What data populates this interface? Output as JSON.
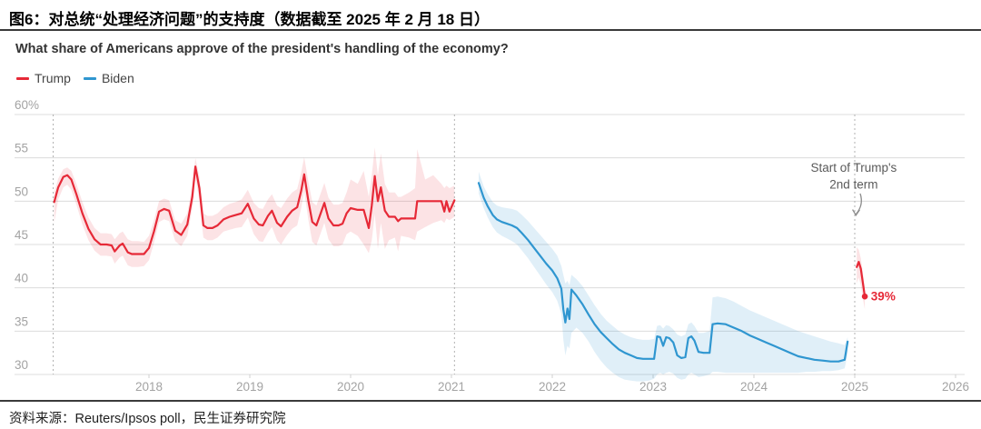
{
  "figure": {
    "title": "图6：对总统“处理经济问题”的支持度（数据截至 2025 年 2 月 18 日）",
    "source": "资料来源：Reuters/Ipsos poll，民生证券研究院"
  },
  "chart_data": {
    "type": "line",
    "title": "What share of Americans approve of the president's handling of the economy?",
    "xlabel": "",
    "ylabel": "",
    "ylim": [
      30,
      60
    ],
    "xlim": [
      2016.95,
      2026.2
    ],
    "grid": true,
    "legend_position": "top-left",
    "y_ticks": [
      {
        "value": 60,
        "label": "60%"
      },
      {
        "value": 55,
        "label": "55"
      },
      {
        "value": 50,
        "label": "50"
      },
      {
        "value": 45,
        "label": "45"
      },
      {
        "value": 40,
        "label": "40"
      },
      {
        "value": 35,
        "label": "35"
      },
      {
        "value": 30,
        "label": "30"
      }
    ],
    "x_ticks": [
      2018,
      2019,
      2020,
      2021,
      2022,
      2023,
      2024,
      2025,
      2026
    ],
    "legend": [
      {
        "label": "Trump",
        "color": "#e62937"
      },
      {
        "label": "Biden",
        "color": "#2f96d0"
      }
    ],
    "event_lines": [
      2017.05,
      2021.03,
      2025.0
    ],
    "annotation": {
      "lines": [
        "Start of Trump's",
        "2nd term"
      ],
      "x": 2024.99,
      "y": 53.4,
      "color": "#5a5a5a"
    },
    "end_label": {
      "text": "39%",
      "x": 2025.16,
      "y": 39.0,
      "color": "#e62937"
    },
    "series": [
      {
        "id": "trump-term1",
        "name": "Trump (1st term)",
        "color": "#e62937",
        "band_opacity": 0.13,
        "end_dot": false,
        "points": [
          [
            2017.06,
            49.9,
            47.5,
            51.0
          ],
          [
            2017.1,
            51.6,
            50.2,
            52.6
          ],
          [
            2017.15,
            52.8,
            51.6,
            53.7
          ],
          [
            2017.19,
            53.0,
            51.9,
            53.9
          ],
          [
            2017.23,
            52.5,
            51.3,
            53.5
          ],
          [
            2017.28,
            50.8,
            49.6,
            52.0
          ],
          [
            2017.34,
            48.6,
            47.3,
            49.9
          ],
          [
            2017.4,
            46.8,
            45.5,
            48.1
          ],
          [
            2017.46,
            45.6,
            44.3,
            46.9
          ],
          [
            2017.52,
            45.0,
            43.7,
            46.3
          ],
          [
            2017.58,
            45.0,
            43.7,
            46.3
          ],
          [
            2017.63,
            44.9,
            43.6,
            46.2
          ],
          [
            2017.66,
            44.2,
            42.8,
            45.6
          ],
          [
            2017.71,
            44.9,
            43.5,
            46.3
          ],
          [
            2017.74,
            45.1,
            43.7,
            46.5
          ],
          [
            2017.79,
            44.1,
            42.6,
            45.6
          ],
          [
            2017.83,
            43.9,
            42.4,
            45.4
          ],
          [
            2017.89,
            43.9,
            42.4,
            45.4
          ],
          [
            2017.95,
            43.9,
            42.5,
            45.3
          ],
          [
            2018.0,
            44.6,
            43.2,
            46.0
          ],
          [
            2018.05,
            46.5,
            45.2,
            47.8
          ],
          [
            2018.1,
            48.8,
            47.6,
            50.0
          ],
          [
            2018.15,
            49.1,
            47.9,
            50.3
          ],
          [
            2018.2,
            48.9,
            47.7,
            50.1
          ],
          [
            2018.26,
            46.6,
            45.4,
            47.8
          ],
          [
            2018.32,
            46.1,
            44.8,
            47.4
          ],
          [
            2018.38,
            47.3,
            46.0,
            48.6
          ],
          [
            2018.43,
            50.5,
            49.2,
            51.7
          ],
          [
            2018.46,
            54.0,
            52.7,
            55.0
          ],
          [
            2018.5,
            51.5,
            50.1,
            52.8
          ],
          [
            2018.54,
            47.2,
            45.8,
            48.6
          ],
          [
            2018.58,
            46.9,
            45.5,
            48.3
          ],
          [
            2018.63,
            46.9,
            45.5,
            48.3
          ],
          [
            2018.68,
            47.2,
            45.8,
            48.6
          ],
          [
            2018.74,
            47.9,
            46.5,
            49.3
          ],
          [
            2018.8,
            48.2,
            46.7,
            49.7
          ],
          [
            2018.86,
            48.4,
            46.9,
            49.9
          ],
          [
            2018.92,
            48.6,
            47.0,
            50.2
          ],
          [
            2018.98,
            49.7,
            48.1,
            51.3
          ],
          [
            2019.04,
            48.0,
            46.2,
            49.8
          ],
          [
            2019.09,
            47.3,
            45.4,
            49.2
          ],
          [
            2019.13,
            47.2,
            45.3,
            49.1
          ],
          [
            2019.18,
            48.3,
            46.4,
            50.2
          ],
          [
            2019.22,
            48.9,
            47.0,
            50.8
          ],
          [
            2019.27,
            47.5,
            45.5,
            49.5
          ],
          [
            2019.31,
            47.1,
            45.0,
            49.2
          ],
          [
            2019.37,
            48.2,
            46.1,
            50.3
          ],
          [
            2019.42,
            48.9,
            46.8,
            51.0
          ],
          [
            2019.47,
            49.3,
            47.2,
            51.4
          ],
          [
            2019.51,
            51.2,
            49.2,
            53.3
          ],
          [
            2019.54,
            53.1,
            51.2,
            55.1
          ],
          [
            2019.58,
            50.1,
            47.9,
            52.3
          ],
          [
            2019.62,
            47.6,
            45.3,
            49.9
          ],
          [
            2019.66,
            47.2,
            44.9,
            49.5
          ],
          [
            2019.7,
            48.5,
            46.2,
            50.8
          ],
          [
            2019.74,
            49.8,
            47.5,
            52.1
          ],
          [
            2019.78,
            48.0,
            45.6,
            50.4
          ],
          [
            2019.83,
            47.2,
            44.8,
            49.6
          ],
          [
            2019.88,
            47.2,
            44.8,
            49.6
          ],
          [
            2019.92,
            47.4,
            45.0,
            49.8
          ],
          [
            2019.96,
            48.6,
            46.2,
            51.0
          ],
          [
            2020.0,
            49.2,
            46.5,
            52.5
          ],
          [
            2020.07,
            49.0,
            46.0,
            52.0
          ],
          [
            2020.13,
            49.0,
            45.0,
            53.5
          ],
          [
            2020.18,
            46.9,
            44.0,
            50.5
          ],
          [
            2020.21,
            49.5,
            45.5,
            53.0
          ],
          [
            2020.24,
            52.9,
            48.5,
            56.2
          ],
          [
            2020.27,
            50.0,
            44.5,
            53.0
          ],
          [
            2020.3,
            51.6,
            47.5,
            55.5
          ],
          [
            2020.34,
            48.9,
            44.5,
            52.0
          ],
          [
            2020.38,
            48.2,
            45.5,
            51.0
          ],
          [
            2020.44,
            48.2,
            45.8,
            51.0
          ],
          [
            2020.47,
            47.7,
            44.2,
            50.5
          ],
          [
            2020.5,
            48.0,
            46.0,
            50.5
          ],
          [
            2020.58,
            48.0,
            45.8,
            51.0
          ],
          [
            2020.64,
            48.0,
            45.5,
            51.5
          ],
          [
            2020.66,
            50.0,
            46.5,
            56.0
          ],
          [
            2020.74,
            50.0,
            47.0,
            52.5
          ],
          [
            2020.82,
            50.0,
            47.5,
            53.0
          ],
          [
            2020.9,
            50.0,
            47.8,
            52.0
          ],
          [
            2020.93,
            48.8,
            47.5,
            51.5
          ],
          [
            2020.95,
            50.0,
            48.0,
            51.8
          ],
          [
            2020.98,
            48.8,
            47.8,
            51.5
          ],
          [
            2021.03,
            50.1,
            48.2,
            51.8
          ]
        ]
      },
      {
        "id": "biden",
        "name": "Biden",
        "color": "#2f96d0",
        "band_opacity": 0.15,
        "end_dot": false,
        "points": [
          [
            2021.27,
            52.1,
            50.9,
            53.4
          ],
          [
            2021.32,
            50.4,
            49.2,
            51.7
          ],
          [
            2021.36,
            49.4,
            48.1,
            50.8
          ],
          [
            2021.41,
            48.4,
            47.0,
            49.9
          ],
          [
            2021.45,
            47.9,
            46.4,
            49.5
          ],
          [
            2021.5,
            47.6,
            46.0,
            49.3
          ],
          [
            2021.55,
            47.4,
            45.7,
            49.2
          ],
          [
            2021.6,
            47.2,
            45.4,
            49.1
          ],
          [
            2021.65,
            46.9,
            45.0,
            48.9
          ],
          [
            2021.7,
            46.3,
            44.3,
            48.4
          ],
          [
            2021.76,
            45.5,
            43.4,
            47.7
          ],
          [
            2021.82,
            44.6,
            42.4,
            46.9
          ],
          [
            2021.88,
            43.7,
            41.4,
            46.1
          ],
          [
            2021.94,
            42.8,
            40.4,
            45.3
          ],
          [
            2022.0,
            42.0,
            39.5,
            44.5
          ],
          [
            2022.05,
            41.1,
            38.5,
            43.7
          ],
          [
            2022.09,
            39.9,
            37.0,
            42.5
          ],
          [
            2022.11,
            37.5,
            34.0,
            41.5
          ],
          [
            2022.13,
            36.0,
            32.2,
            40.5
          ],
          [
            2022.15,
            37.6,
            33.3,
            40.8
          ],
          [
            2022.17,
            36.4,
            33.0,
            40.3
          ],
          [
            2022.19,
            39.8,
            34.8,
            41.5
          ],
          [
            2022.24,
            39.1,
            35.4,
            41.0
          ],
          [
            2022.3,
            38.1,
            34.8,
            40.2
          ],
          [
            2022.36,
            36.9,
            33.8,
            39.1
          ],
          [
            2022.42,
            35.8,
            32.6,
            38.0
          ],
          [
            2022.48,
            34.9,
            31.6,
            37.0
          ],
          [
            2022.54,
            34.2,
            30.8,
            36.2
          ],
          [
            2022.6,
            33.5,
            30.2,
            35.6
          ],
          [
            2022.66,
            32.9,
            29.7,
            35.0
          ],
          [
            2022.72,
            32.5,
            29.4,
            34.6
          ],
          [
            2022.78,
            32.2,
            29.3,
            34.3
          ],
          [
            2022.84,
            31.9,
            29.2,
            34.1
          ],
          [
            2022.9,
            31.8,
            29.2,
            34.0
          ],
          [
            2022.96,
            31.8,
            29.3,
            34.0
          ],
          [
            2023.01,
            31.8,
            29.5,
            34.1
          ],
          [
            2023.04,
            34.4,
            30.0,
            35.6
          ],
          [
            2023.07,
            34.3,
            30.2,
            35.7
          ],
          [
            2023.1,
            33.3,
            30.0,
            35.3
          ],
          [
            2023.13,
            34.3,
            30.2,
            35.7
          ],
          [
            2023.16,
            34.2,
            30.3,
            35.6
          ],
          [
            2023.2,
            33.7,
            30.1,
            35.2
          ],
          [
            2023.24,
            32.2,
            29.6,
            34.6
          ],
          [
            2023.28,
            31.9,
            29.4,
            34.4
          ],
          [
            2023.32,
            32.0,
            29.5,
            34.6
          ],
          [
            2023.35,
            34.2,
            30.0,
            35.8
          ],
          [
            2023.38,
            34.4,
            30.2,
            36.0
          ],
          [
            2023.41,
            33.9,
            30.0,
            35.6
          ],
          [
            2023.45,
            32.6,
            29.7,
            34.8
          ],
          [
            2023.5,
            32.5,
            29.8,
            34.8
          ],
          [
            2023.56,
            32.5,
            30.0,
            35.0
          ],
          [
            2023.59,
            35.8,
            30.3,
            38.9
          ],
          [
            2023.64,
            35.9,
            30.3,
            39.0
          ],
          [
            2023.72,
            35.8,
            30.2,
            38.8
          ],
          [
            2023.8,
            35.4,
            30.2,
            38.4
          ],
          [
            2023.88,
            35.0,
            30.2,
            37.9
          ],
          [
            2023.96,
            34.5,
            30.2,
            37.4
          ],
          [
            2024.04,
            34.1,
            30.2,
            37.0
          ],
          [
            2024.12,
            33.7,
            30.2,
            36.6
          ],
          [
            2024.2,
            33.3,
            30.2,
            36.2
          ],
          [
            2024.28,
            32.9,
            30.2,
            35.8
          ],
          [
            2024.36,
            32.5,
            30.2,
            35.4
          ],
          [
            2024.44,
            32.1,
            30.2,
            35.0
          ],
          [
            2024.52,
            31.9,
            30.3,
            34.7
          ],
          [
            2024.6,
            31.7,
            30.3,
            34.4
          ],
          [
            2024.68,
            31.6,
            30.4,
            34.1
          ],
          [
            2024.76,
            31.5,
            30.4,
            33.8
          ],
          [
            2024.84,
            31.5,
            30.5,
            33.6
          ],
          [
            2024.9,
            31.7,
            30.7,
            33.4
          ],
          [
            2024.93,
            33.8,
            32.4,
            34.3
          ]
        ]
      },
      {
        "id": "trump-term2",
        "name": "Trump (2nd term)",
        "color": "#e62937",
        "band_opacity": 0.13,
        "end_dot": true,
        "points": [
          [
            2025.02,
            42.4,
            40.5,
            44.7
          ],
          [
            2025.04,
            43.0,
            41.2,
            44.4
          ],
          [
            2025.06,
            42.2,
            40.3,
            43.4
          ],
          [
            2025.08,
            40.6,
            38.8,
            41.8
          ],
          [
            2025.1,
            39.0,
            37.5,
            40.0
          ]
        ]
      }
    ]
  }
}
